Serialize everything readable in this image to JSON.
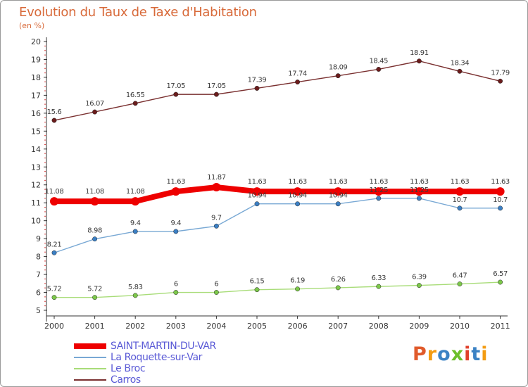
{
  "title": "Evolution du Taux de Taxe d'Habitation",
  "unit": "(en %)",
  "logo": {
    "text": "Proxiti",
    "letter_colors": [
      "#e05a2b",
      "#f39c12",
      "#3b82c4",
      "#6cbf2a",
      "#e0402b",
      "#3b82c4",
      "#f39c12"
    ]
  },
  "chart_data": {
    "type": "line",
    "title": "Evolution du Taux de Taxe d'Habitation",
    "ylabel": "(en %)",
    "xlabel": "",
    "x": [
      "2000",
      "2001",
      "2002",
      "2003",
      "2004",
      "2005",
      "2006",
      "2007",
      "2008",
      "2009",
      "2010",
      "2011"
    ],
    "ylim": [
      5,
      20
    ],
    "yticks": [
      5,
      6,
      7,
      8,
      9,
      10,
      11,
      12,
      13,
      14,
      15,
      16,
      17,
      18,
      19,
      20
    ],
    "grid": false,
    "legend_position": "bottom-left",
    "series": [
      {
        "name": "SAINT-MARTIN-DU-VAR",
        "color": "#ee0000",
        "thick": true,
        "values": [
          11.08,
          11.08,
          11.08,
          11.63,
          11.87,
          11.63,
          11.63,
          11.63,
          11.63,
          11.63,
          11.63,
          11.63
        ],
        "labels": [
          "11.08",
          "11.08",
          "11.08",
          "11.63",
          "11.87",
          "11.63",
          "11.63",
          "11.63",
          "11.63",
          "11.63",
          "11.63",
          "11.63"
        ]
      },
      {
        "name": "La Roquette-sur-Var",
        "color": "#78a8d4",
        "marker": "#3b7fc4",
        "values": [
          8.21,
          8.98,
          9.4,
          9.4,
          9.7,
          10.94,
          10.94,
          10.94,
          11.25,
          11.25,
          10.7,
          10.7
        ],
        "labels": [
          "8.21",
          "8.98",
          "9.4",
          "9.4",
          "9.7",
          "10.94",
          "10.94",
          "10.94",
          "11.25",
          "11.25",
          "10.7",
          "10.7"
        ]
      },
      {
        "name": "Le Broc",
        "color": "#a8dc78",
        "marker": "#7cc84a",
        "values": [
          5.72,
          5.72,
          5.83,
          6,
          6,
          6.15,
          6.19,
          6.26,
          6.33,
          6.39,
          6.47,
          6.57
        ],
        "labels": [
          "5.72",
          "5.72",
          "5.83",
          "6",
          "6",
          "6.15",
          "6.19",
          "6.26",
          "6.33",
          "6.39",
          "6.47",
          "6.57"
        ]
      },
      {
        "name": "Carros",
        "color": "#7a3030",
        "marker": "#6b1c1c",
        "values": [
          15.6,
          16.07,
          16.55,
          17.05,
          17.05,
          17.39,
          17.74,
          18.09,
          18.45,
          18.91,
          18.34,
          17.79
        ],
        "labels": [
          "15.6",
          "16.07",
          "16.55",
          "17.05",
          "17.05",
          "17.39",
          "17.74",
          "18.09",
          "18.45",
          "18.91",
          "18.34",
          "17.79"
        ]
      }
    ]
  }
}
